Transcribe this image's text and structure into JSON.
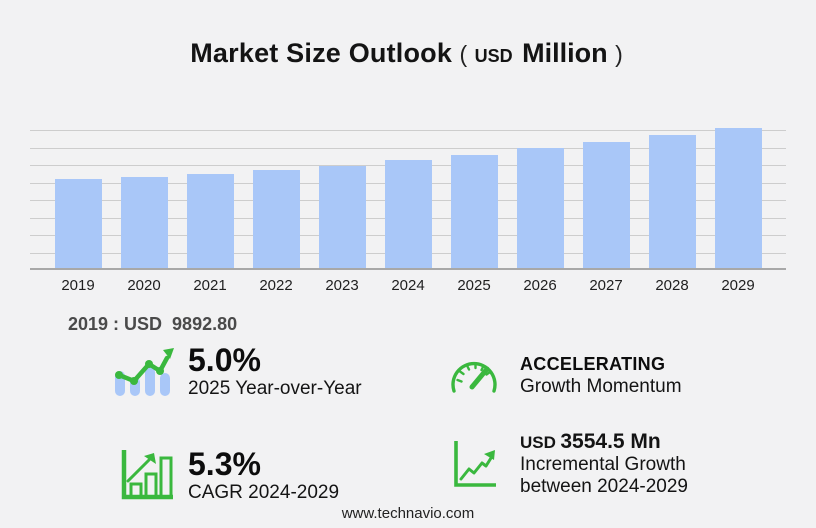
{
  "page": {
    "background": "#f2f2f3"
  },
  "title": {
    "main": "Market Size Outlook",
    "paren_open": "(",
    "currency": "USD",
    "unit": "Million",
    "paren_close": ")"
  },
  "chart_data": {
    "type": "bar",
    "title": "Market Size Outlook (USD Million)",
    "categories": [
      "2019",
      "2020",
      "2021",
      "2022",
      "2023",
      "2024",
      "2025",
      "2026",
      "2027",
      "2028",
      "2029"
    ],
    "values": [
      9892.8,
      10110,
      10440,
      10950,
      11340,
      12050,
      12650,
      13330,
      14050,
      14810,
      15600
    ],
    "xlabel": "",
    "ylabel": "",
    "ylim": [
      0,
      15600
    ],
    "grid": true,
    "gridline_count": 8,
    "legend": "none",
    "bar_color": "#a9c7f8",
    "gridline_color": "#cdcdcd",
    "axis_color": "#a8a8a8"
  },
  "callout": {
    "text": "2019 : USD  9892.80"
  },
  "stats": [
    {
      "icon": "bar-trend-up-icon",
      "value": "5.0%",
      "label": "2025 Year-over-Year"
    },
    {
      "icon": "speedometer-icon",
      "value": "ACCELERATING",
      "label": "Growth Momentum"
    },
    {
      "icon": "bar-growth-icon",
      "value": "5.3%",
      "label": "CAGR 2024-2029"
    },
    {
      "icon": "line-growth-icon",
      "value_prefix": "USD",
      "value": "3554.5 Mn",
      "label": "Incremental Growth",
      "label2": "between 2024-2029"
    }
  ],
  "footer": {
    "website": "www.technavio.com"
  },
  "colors": {
    "accent_green": "#3ab83e",
    "bar_blue": "#a9c7f8",
    "text_dark": "#141414",
    "callout_gray": "#4a4a4a"
  }
}
